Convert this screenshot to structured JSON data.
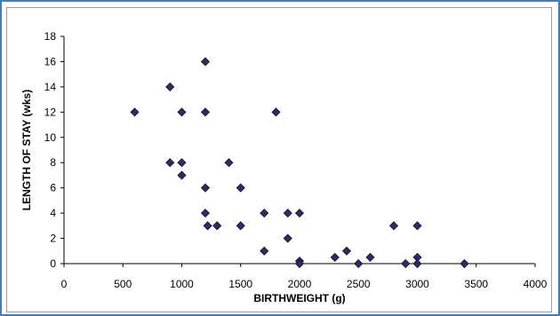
{
  "chart_data": {
    "type": "scatter",
    "title": "",
    "xlabel": "BIRTHWEIGHT (g)",
    "ylabel": "LENGTH OF STAY (wks)",
    "xlim": [
      0,
      4000
    ],
    "ylim": [
      0,
      18
    ],
    "xticks": [
      0,
      500,
      1000,
      1500,
      2000,
      2500,
      3000,
      3500,
      4000
    ],
    "yticks": [
      0,
      2,
      4,
      6,
      8,
      10,
      12,
      14,
      16,
      18
    ],
    "grid": false,
    "legend": "none",
    "marker_color": "#2e2e5e",
    "points": [
      {
        "x": 600,
        "y": 12
      },
      {
        "x": 900,
        "y": 14
      },
      {
        "x": 900,
        "y": 8
      },
      {
        "x": 1000,
        "y": 12
      },
      {
        "x": 1000,
        "y": 8
      },
      {
        "x": 1000,
        "y": 7
      },
      {
        "x": 1200,
        "y": 16
      },
      {
        "x": 1200,
        "y": 12
      },
      {
        "x": 1200,
        "y": 6
      },
      {
        "x": 1200,
        "y": 4
      },
      {
        "x": 1220,
        "y": 3
      },
      {
        "x": 1300,
        "y": 3
      },
      {
        "x": 1400,
        "y": 8
      },
      {
        "x": 1500,
        "y": 6
      },
      {
        "x": 1500,
        "y": 3
      },
      {
        "x": 1700,
        "y": 4
      },
      {
        "x": 1700,
        "y": 1
      },
      {
        "x": 1800,
        "y": 12
      },
      {
        "x": 1900,
        "y": 4
      },
      {
        "x": 1900,
        "y": 2
      },
      {
        "x": 2000,
        "y": 4
      },
      {
        "x": 2000,
        "y": 0.2
      },
      {
        "x": 2000,
        "y": 0
      },
      {
        "x": 2300,
        "y": 0.5
      },
      {
        "x": 2400,
        "y": 1
      },
      {
        "x": 2500,
        "y": 0
      },
      {
        "x": 2600,
        "y": 0.5
      },
      {
        "x": 2800,
        "y": 3
      },
      {
        "x": 2900,
        "y": 0
      },
      {
        "x": 3000,
        "y": 3
      },
      {
        "x": 3000,
        "y": 0.5
      },
      {
        "x": 3000,
        "y": 0
      },
      {
        "x": 3400,
        "y": 0
      }
    ]
  }
}
